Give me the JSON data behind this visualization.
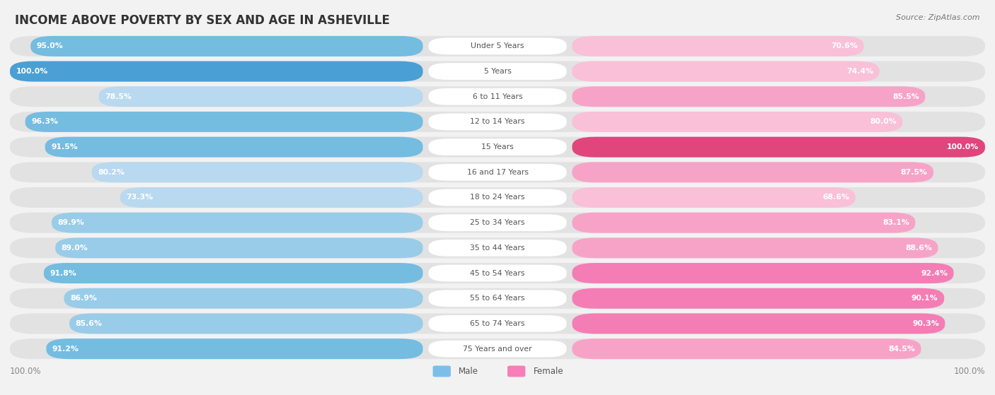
{
  "title": "INCOME ABOVE POVERTY BY SEX AND AGE IN ASHEVILLE",
  "source": "Source: ZipAtlas.com",
  "categories": [
    "Under 5 Years",
    "5 Years",
    "6 to 11 Years",
    "12 to 14 Years",
    "15 Years",
    "16 and 17 Years",
    "18 to 24 Years",
    "25 to 34 Years",
    "35 to 44 Years",
    "45 to 54 Years",
    "55 to 64 Years",
    "65 to 74 Years",
    "75 Years and over"
  ],
  "male_values": [
    95.0,
    100.0,
    78.5,
    96.3,
    91.5,
    80.2,
    73.3,
    89.9,
    89.0,
    91.8,
    86.9,
    85.6,
    91.2
  ],
  "female_values": [
    70.6,
    74.4,
    85.5,
    80.0,
    100.0,
    87.5,
    68.6,
    83.1,
    88.6,
    92.4,
    90.1,
    90.3,
    84.5
  ],
  "bg_color": "#f2f2f2",
  "bar_bg_color": "#e2e2e2",
  "title_color": "#333333",
  "source_color": "#777777",
  "label_color": "#555555",
  "value_color": "#ffffff",
  "cat_label_color": "#555555",
  "bottom_label_color": "#888888",
  "legend_male_color": "#7bbfe8",
  "legend_female_color": "#f77eb9"
}
